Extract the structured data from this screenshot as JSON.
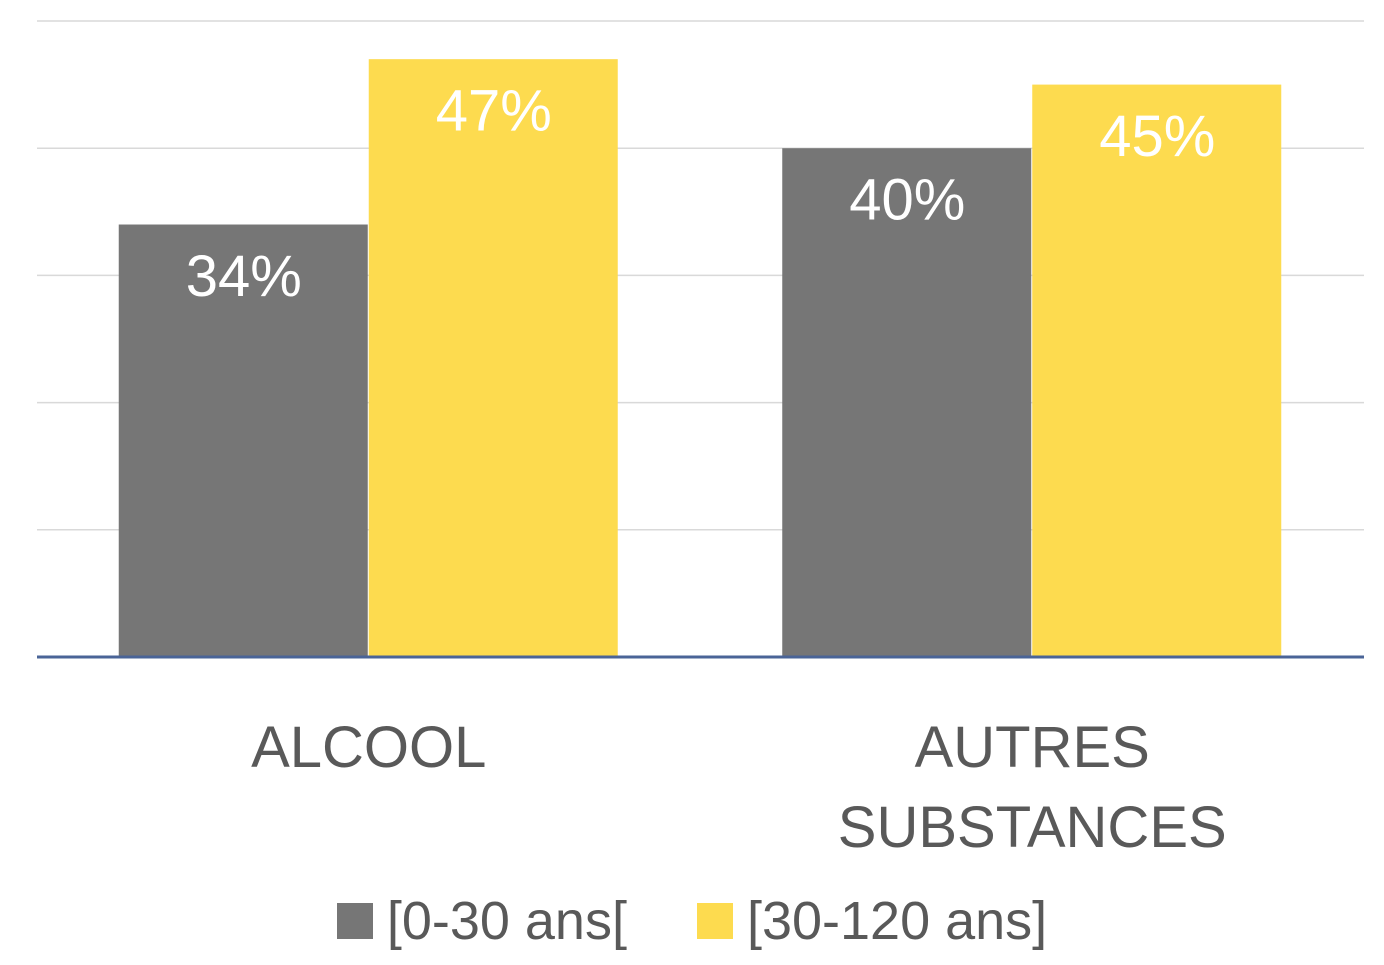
{
  "chart_data": {
    "type": "bar",
    "categories": [
      "ALCOOL",
      "AUTRES SUBSTANCES"
    ],
    "series": [
      {
        "name": "[0-30 ans[",
        "color": "#767676",
        "values": [
          34,
          40
        ],
        "value_labels": [
          "34%",
          "40%"
        ]
      },
      {
        "name": "[30-120 ans]",
        "color": "#fddb4f",
        "values": [
          47,
          45
        ],
        "value_labels": [
          "47%",
          "45%"
        ]
      }
    ],
    "ylim": [
      0,
      50
    ],
    "yticks": [
      0,
      10,
      20,
      30,
      40,
      50
    ],
    "grid": true,
    "legend": "bottom"
  }
}
